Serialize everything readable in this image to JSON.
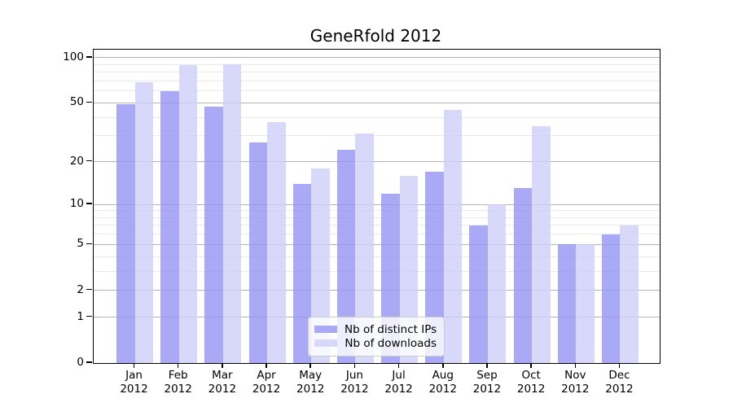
{
  "chart_data": {
    "type": "bar",
    "title": "GeneRfold 2012",
    "categories": [
      "Jan 2012",
      "Feb 2012",
      "Mar 2012",
      "Apr 2012",
      "May 2012",
      "Jun 2012",
      "Jul 2012",
      "Aug 2012",
      "Sep 2012",
      "Oct 2012",
      "Nov 2012",
      "Dec 2012"
    ],
    "series": [
      {
        "name": "Nb of distinct IPs",
        "values": [
          49,
          60,
          47,
          27,
          14,
          24,
          12,
          17,
          7,
          13,
          5,
          6
        ],
        "fill": "rgba(148,148,244,0.8)",
        "swatch_color": "#a9a9f6"
      },
      {
        "name": "Nb of downloads",
        "values": [
          69,
          89,
          90,
          37,
          18,
          31,
          16,
          45,
          10,
          35,
          5,
          7
        ],
        "fill": "rgba(206,206,250,0.8)",
        "swatch_color": "#d8d8fb"
      }
    ],
    "y_axis": {
      "scale": "log1p",
      "major_ticks": [
        0,
        1,
        2,
        5,
        10,
        20,
        50,
        100
      ],
      "minor_gridlines": [
        3,
        4,
        6,
        7,
        8,
        9,
        30,
        40,
        60,
        70,
        80,
        90
      ],
      "top_value": 113
    },
    "x_axis": {
      "tick_labels_two_lines": true
    },
    "grid": "on",
    "legend_position": "bottom-center",
    "colors": {
      "major_grid": "#b4b4b4",
      "minor_grid": "#e9e9e9",
      "spine": "#000000",
      "background": "#ffffff"
    }
  }
}
